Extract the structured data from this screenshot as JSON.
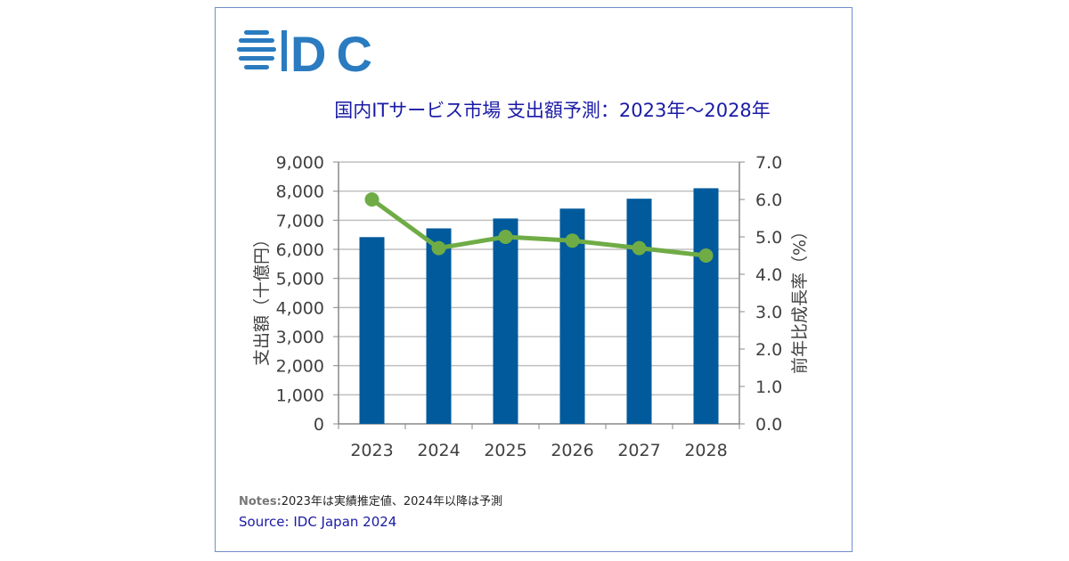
{
  "logo": {
    "text": "IDC",
    "color": "#2a7bc0"
  },
  "chart_data": {
    "type": "bar+line",
    "title": "国内ITサービス市場 支出額予測：2023年～2028年",
    "categories": [
      "2023",
      "2024",
      "2025",
      "2026",
      "2027",
      "2028"
    ],
    "series": [
      {
        "kind": "bar",
        "axis": "left",
        "values": [
          6420,
          6720,
          7060,
          7400,
          7740,
          8100
        ],
        "color": "#005a9c"
      },
      {
        "kind": "line",
        "axis": "right",
        "values": [
          6.0,
          4.7,
          5.0,
          4.9,
          4.7,
          4.5
        ],
        "color": "#6fac46"
      }
    ],
    "ylabel": "支出額（十億円）",
    "y2label": "前年比成長率（%）",
    "ylim": [
      0,
      9000
    ],
    "y2lim": [
      0,
      7.0
    ],
    "yticks": [
      "0",
      "1,000",
      "2,000",
      "3,000",
      "4,000",
      "5,000",
      "6,000",
      "7,000",
      "8,000",
      "9,000"
    ],
    "y2ticks": [
      "0.0",
      "1.0",
      "2.0",
      "3.0",
      "4.0",
      "5.0",
      "6.0",
      "7.0"
    ],
    "grid": true
  },
  "notes": {
    "label": "Notes:",
    "text": "2023年は実績推定値、2024年以降は予測"
  },
  "source": "Source: IDC Japan 2024"
}
